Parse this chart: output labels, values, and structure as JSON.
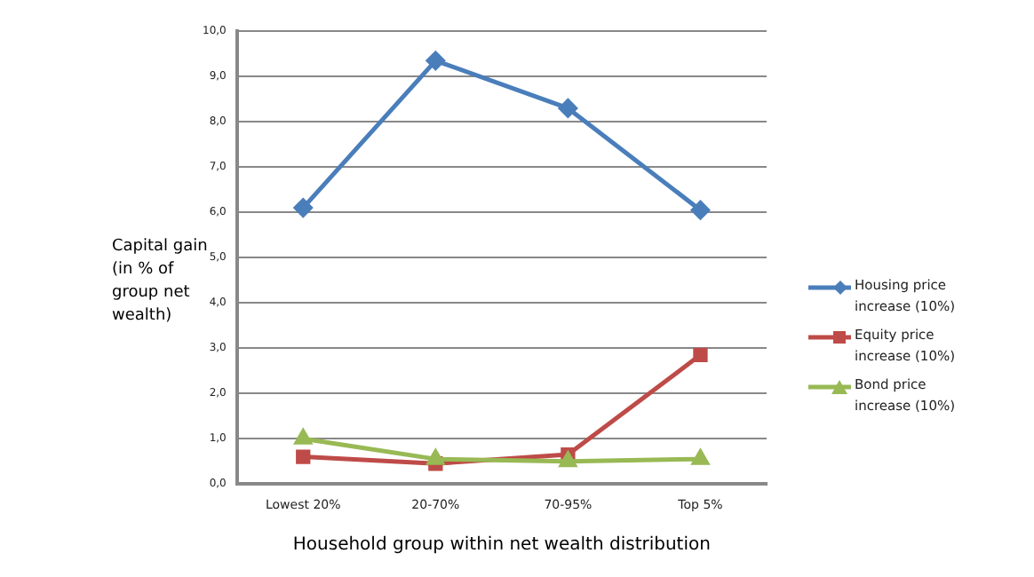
{
  "chart_data": {
    "type": "line",
    "xlabel": "Household group within net wealth distribution",
    "ylabel": "Capital gain (in % of group net wealth)",
    "categories": [
      "Lowest 20%",
      "20-70%",
      "70-95%",
      "Top 5%"
    ],
    "series": [
      {
        "name": "Housing price increase (10%)",
        "color": "#4a7ebb",
        "marker": "diamond",
        "values": [
          6.1,
          9.35,
          8.3,
          6.05
        ]
      },
      {
        "name": "Equity price increase (10%)",
        "color": "#be4b48",
        "marker": "square",
        "values": [
          0.6,
          0.45,
          0.65,
          2.85
        ]
      },
      {
        "name": "Bond price increase (10%)",
        "color": "#98b954",
        "marker": "triangle",
        "values": [
          1.0,
          0.55,
          0.5,
          0.55
        ]
      }
    ],
    "ylim": [
      0,
      10
    ],
    "yticks": [
      {
        "value": 0,
        "label": "0,0"
      },
      {
        "value": 1,
        "label": "1,0"
      },
      {
        "value": 2,
        "label": "2,0"
      },
      {
        "value": 3,
        "label": "3,0"
      },
      {
        "value": 4,
        "label": "4,0"
      },
      {
        "value": 5,
        "label": "5,0"
      },
      {
        "value": 6,
        "label": "6,0"
      },
      {
        "value": 7,
        "label": "7,0"
      },
      {
        "value": 8,
        "label": "8,0"
      },
      {
        "value": 9,
        "label": "9,0"
      },
      {
        "value": 10,
        "label": "10,0"
      }
    ],
    "grid": "y",
    "legend": "right",
    "line_style": "solid"
  }
}
